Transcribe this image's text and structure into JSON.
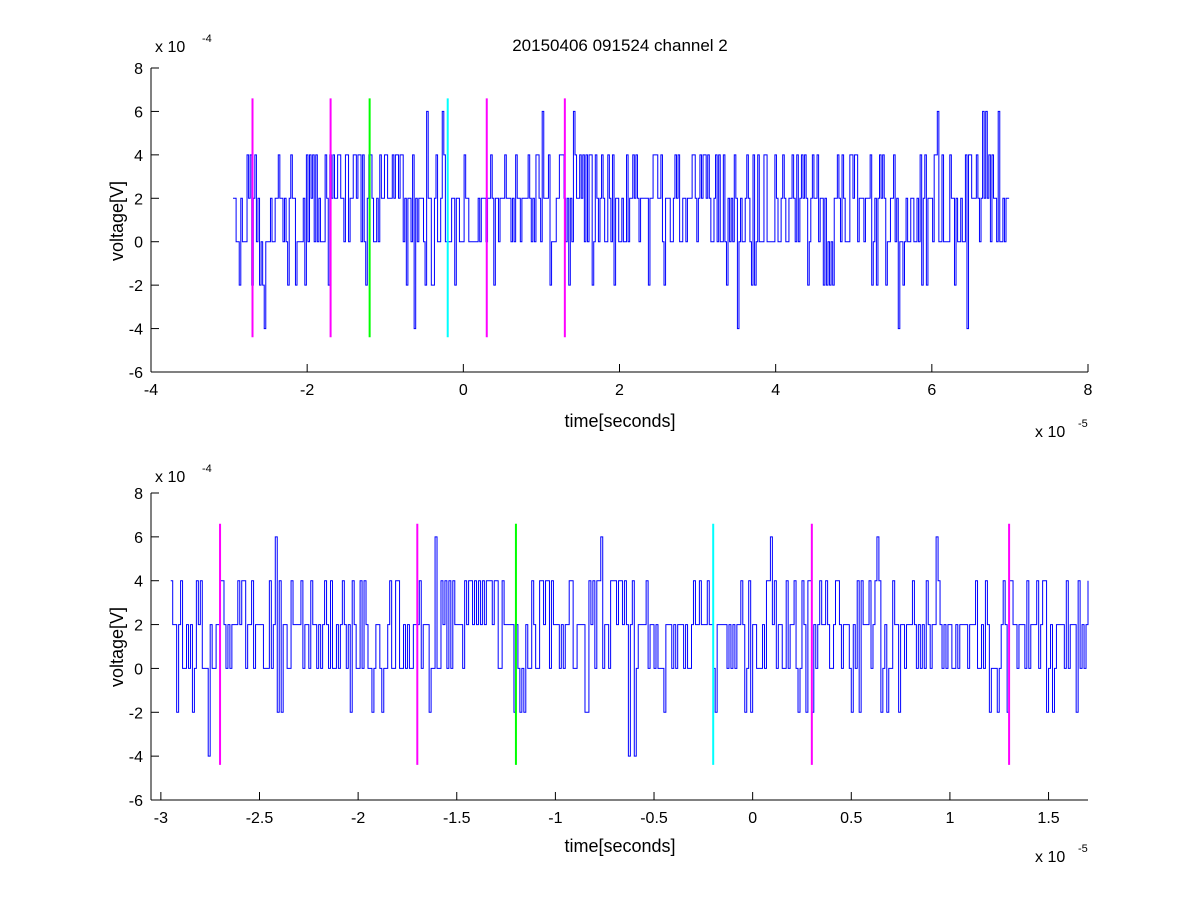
{
  "chart_data": [
    {
      "type": "line",
      "title": "20150406 091524 channel 2",
      "xlabel": "time[seconds]",
      "ylabel": "voltage[V]",
      "x_exponent_label": "x 10",
      "x_exponent_power": "-5",
      "y_exponent_label": "x 10",
      "y_exponent_power": "-4",
      "xlim": [
        -4,
        8
      ],
      "ylim": [
        -6,
        8
      ],
      "xticks": [
        -4,
        -2,
        0,
        2,
        4,
        6,
        8
      ],
      "xtick_labels": [
        "-4",
        "-2",
        "0",
        "2",
        "4",
        "6",
        "8"
      ],
      "yticks": [
        -6,
        -4,
        -2,
        0,
        2,
        4,
        6,
        8
      ],
      "ytick_labels": [
        "-6",
        "-4",
        "-2",
        "0",
        "2",
        "4",
        "6",
        "8"
      ],
      "grid": false,
      "series": [
        {
          "color": "#0000ff",
          "x_range": [
            -2.95,
            7.0
          ],
          "sample_step": 0.02,
          "quantized_levels": [
            -4,
            -2,
            0,
            2,
            4,
            6
          ],
          "baseline": 2,
          "seed": 12345
        }
      ],
      "markers": [
        {
          "x": -2.7,
          "color": "#ff00ff",
          "y_range": [
            -4.4,
            6.6
          ]
        },
        {
          "x": -1.7,
          "color": "#ff00ff",
          "y_range": [
            -4.4,
            6.6
          ]
        },
        {
          "x": -1.2,
          "color": "#00ff00",
          "y_range": [
            -4.4,
            6.6
          ]
        },
        {
          "x": -0.2,
          "color": "#00ffff",
          "y_range": [
            -4.4,
            6.6
          ]
        },
        {
          "x": 0.3,
          "color": "#ff00ff",
          "y_range": [
            -4.4,
            6.6
          ]
        },
        {
          "x": 1.3,
          "color": "#ff00ff",
          "y_range": [
            -4.4,
            6.6
          ]
        }
      ]
    },
    {
      "type": "line",
      "xlabel": "time[seconds]",
      "ylabel": "voltage[V]",
      "x_exponent_label": "x 10",
      "x_exponent_power": "-5",
      "y_exponent_label": "x 10",
      "y_exponent_power": "-4",
      "xlim": [
        -3.05,
        1.7
      ],
      "ylim": [
        -6,
        8
      ],
      "xticks": [
        -3,
        -2.5,
        -2,
        -1.5,
        -1,
        -0.5,
        0,
        0.5,
        1,
        1.5
      ],
      "xtick_labels": [
        "-3",
        "-2.5",
        "-2",
        "-1.5",
        "-1",
        "-0.5",
        "0",
        "0.5",
        "1",
        "1.5"
      ],
      "yticks": [
        -6,
        -4,
        -2,
        0,
        2,
        4,
        6,
        8
      ],
      "ytick_labels": [
        "-6",
        "-4",
        "-2",
        "0",
        "2",
        "4",
        "6",
        "8"
      ],
      "grid": false,
      "series": [
        {
          "color": "#0000ff",
          "x_range": [
            -2.95,
            1.7
          ],
          "sample_step": 0.01,
          "quantized_levels": [
            -4,
            -2,
            0,
            2,
            4,
            6
          ],
          "baseline": 2,
          "seed": 6789
        }
      ],
      "markers": [
        {
          "x": -2.7,
          "color": "#ff00ff",
          "y_range": [
            -4.4,
            6.6
          ]
        },
        {
          "x": -1.7,
          "color": "#ff00ff",
          "y_range": [
            -4.4,
            6.6
          ]
        },
        {
          "x": -1.2,
          "color": "#00ff00",
          "y_range": [
            -4.4,
            6.6
          ]
        },
        {
          "x": -0.2,
          "color": "#00ffff",
          "y_range": [
            -4.4,
            6.6
          ]
        },
        {
          "x": 0.3,
          "color": "#ff00ff",
          "y_range": [
            -4.4,
            6.6
          ]
        },
        {
          "x": 1.3,
          "color": "#ff00ff",
          "y_range": [
            -4.4,
            6.6
          ]
        }
      ]
    }
  ]
}
